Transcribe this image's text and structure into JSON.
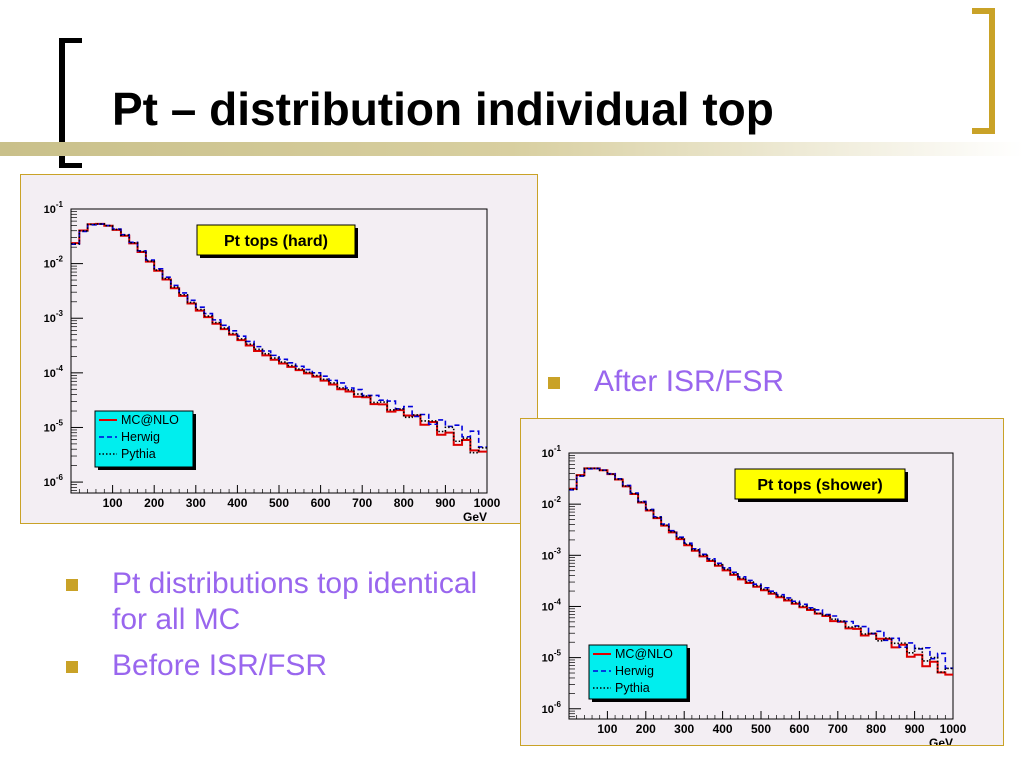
{
  "slide": {
    "title": "Pt – distribution individual top",
    "accent_color": "#c9a227",
    "bullet_color": "#9966ee"
  },
  "bullets_right": [
    "After ISR/FSR"
  ],
  "bullets_left": [
    "Pt distributions top identical for all MC",
    "Before ISR/FSR"
  ],
  "chart_data": [
    {
      "type": "line",
      "title": "Pt tops (hard)",
      "xlabel": "GeV",
      "ylabel": "",
      "log_y": true,
      "xlim": [
        0,
        1000
      ],
      "ylim_exponents": [
        -6.2,
        -1.0
      ],
      "x_ticks": [
        100,
        200,
        300,
        400,
        500,
        600,
        700,
        800,
        900,
        1000
      ],
      "y_ticks": [
        {
          "base": "10",
          "exp": "-1",
          "value_exp": -1
        },
        {
          "base": "10",
          "exp": "-2",
          "value_exp": -2
        },
        {
          "base": "10",
          "exp": "-3",
          "value_exp": -3
        },
        {
          "base": "10",
          "exp": "-4",
          "value_exp": -4
        },
        {
          "base": "10",
          "exp": "-5",
          "value_exp": -5
        },
        {
          "base": "10",
          "exp": "-6",
          "value_exp": -6
        }
      ],
      "legend_position": "bottom-left",
      "legend_bg": "#00eeee",
      "title_bg": "#ffff00",
      "series": [
        {
          "name": "MC@NLO",
          "color": "#dd0000",
          "style": "solid",
          "x": [
            0,
            20,
            50,
            80,
            120,
            160,
            200,
            250,
            300,
            350,
            400,
            450,
            500,
            550,
            600,
            650,
            700,
            750,
            800,
            850,
            900,
            950,
            1000
          ],
          "log10y": [
            -1.8,
            -1.45,
            -1.28,
            -1.27,
            -1.42,
            -1.7,
            -2.05,
            -2.45,
            -2.8,
            -3.1,
            -3.35,
            -3.6,
            -3.8,
            -3.95,
            -4.1,
            -4.3,
            -4.45,
            -4.6,
            -4.75,
            -4.9,
            -5.1,
            -5.3,
            -5.6
          ]
        },
        {
          "name": "Herwig",
          "color": "#0000dd",
          "style": "dashed",
          "x": [
            0,
            20,
            50,
            80,
            120,
            160,
            200,
            250,
            300,
            350,
            400,
            450,
            500,
            550,
            600,
            650,
            700,
            750,
            800,
            850,
            900,
            950,
            1000
          ],
          "log10y": [
            -1.82,
            -1.47,
            -1.29,
            -1.27,
            -1.4,
            -1.68,
            -2.02,
            -2.4,
            -2.74,
            -3.03,
            -3.28,
            -3.52,
            -3.72,
            -3.88,
            -4.03,
            -4.2,
            -4.35,
            -4.5,
            -4.65,
            -4.8,
            -4.95,
            -5.1,
            -5.3
          ]
        },
        {
          "name": "Pythia",
          "color": "#000000",
          "style": "dotted",
          "x": [
            0,
            20,
            50,
            80,
            120,
            160,
            200,
            250,
            300,
            350,
            400,
            450,
            500,
            550,
            600,
            650,
            700,
            750,
            800,
            850,
            900,
            950,
            1000
          ],
          "log10y": [
            -1.81,
            -1.46,
            -1.28,
            -1.27,
            -1.41,
            -1.69,
            -2.04,
            -2.43,
            -2.78,
            -3.08,
            -3.33,
            -3.57,
            -3.77,
            -3.93,
            -4.08,
            -4.26,
            -4.42,
            -4.58,
            -4.72,
            -4.88,
            -5.05,
            -5.25,
            -5.5
          ]
        }
      ]
    },
    {
      "type": "line",
      "title": "Pt tops (shower)",
      "xlabel": "GeV",
      "ylabel": "",
      "log_y": true,
      "xlim": [
        0,
        1000
      ],
      "ylim_exponents": [
        -6.2,
        -1.0
      ],
      "x_ticks": [
        100,
        200,
        300,
        400,
        500,
        600,
        700,
        800,
        900,
        1000
      ],
      "y_ticks": [
        {
          "base": "10",
          "exp": "-1",
          "value_exp": -1
        },
        {
          "base": "10",
          "exp": "-2",
          "value_exp": -2
        },
        {
          "base": "10",
          "exp": "-3",
          "value_exp": -3
        },
        {
          "base": "10",
          "exp": "-4",
          "value_exp": -4
        },
        {
          "base": "10",
          "exp": "-5",
          "value_exp": -5
        },
        {
          "base": "10",
          "exp": "-6",
          "value_exp": -6
        }
      ],
      "legend_position": "bottom-left",
      "legend_bg": "#00eeee",
      "title_bg": "#ffff00",
      "series": [
        {
          "name": "MC@NLO",
          "color": "#dd0000",
          "style": "solid",
          "x": [
            0,
            20,
            50,
            80,
            120,
            160,
            200,
            250,
            300,
            350,
            400,
            450,
            500,
            550,
            600,
            650,
            700,
            750,
            800,
            850,
            900,
            950,
            1000
          ],
          "log10y": [
            -1.9,
            -1.5,
            -1.3,
            -1.3,
            -1.45,
            -1.72,
            -2.05,
            -2.42,
            -2.75,
            -3.02,
            -3.25,
            -3.47,
            -3.65,
            -3.82,
            -3.98,
            -4.14,
            -4.3,
            -4.46,
            -4.6,
            -4.75,
            -4.95,
            -5.15,
            -5.5
          ]
        },
        {
          "name": "Herwig",
          "color": "#0000dd",
          "style": "dashed",
          "x": [
            0,
            20,
            50,
            80,
            120,
            160,
            200,
            250,
            300,
            350,
            400,
            450,
            500,
            550,
            600,
            650,
            700,
            750,
            800,
            850,
            900,
            950,
            1000
          ],
          "log10y": [
            -1.92,
            -1.52,
            -1.31,
            -1.3,
            -1.44,
            -1.7,
            -2.03,
            -2.39,
            -2.71,
            -2.98,
            -3.2,
            -3.42,
            -3.6,
            -3.77,
            -3.93,
            -4.08,
            -4.23,
            -4.38,
            -4.52,
            -4.66,
            -4.8,
            -4.95,
            -5.15
          ]
        },
        {
          "name": "Pythia",
          "color": "#000000",
          "style": "dotted",
          "x": [
            0,
            20,
            50,
            80,
            120,
            160,
            200,
            250,
            300,
            350,
            400,
            450,
            500,
            550,
            600,
            650,
            700,
            750,
            800,
            850,
            900,
            950,
            1000
          ],
          "log10y": [
            -1.91,
            -1.51,
            -1.3,
            -1.3,
            -1.45,
            -1.71,
            -2.04,
            -2.41,
            -2.73,
            -3.0,
            -3.23,
            -3.45,
            -3.63,
            -3.8,
            -3.96,
            -4.12,
            -4.28,
            -4.44,
            -4.58,
            -4.72,
            -4.88,
            -5.05,
            -5.35
          ]
        }
      ]
    }
  ]
}
